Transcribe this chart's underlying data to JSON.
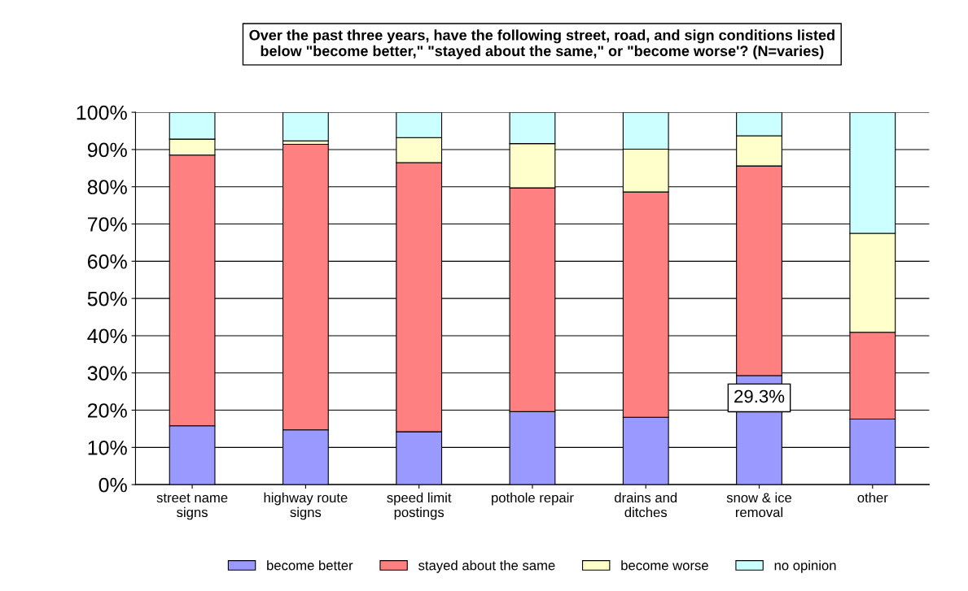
{
  "chart_data": {
    "type": "bar",
    "stacked": true,
    "title": "Over the past three years, have the following street, road, and sign conditions listed\nbelow \"become better,\" \"stayed about the same,\" or \"become worse'? (N=varies)",
    "categories": [
      "street name\nsigns",
      "highway route\nsigns",
      "speed limit\npostings",
      "pothole repair",
      "drains and\nditches",
      "snow & ice\nremoval",
      "other"
    ],
    "series": [
      {
        "name": "become better",
        "color": "#9999ff",
        "values": [
          15.8,
          14.7,
          14.2,
          19.6,
          18.1,
          29.3,
          17.6
        ],
        "value_labels": [
          null,
          null,
          null,
          null,
          null,
          "29.3%",
          null
        ]
      },
      {
        "name": "stayed about the same",
        "color": "#ff8080",
        "values": [
          72.7,
          76.7,
          72.3,
          60.1,
          60.5,
          56.3,
          23.3
        ]
      },
      {
        "name": "become worse",
        "color": "#ffffcc",
        "values": [
          4.3,
          0.9,
          6.7,
          11.9,
          11.5,
          8.1,
          26.6
        ]
      },
      {
        "name": "no opinion",
        "color": "#ccffff",
        "values": [
          7.2,
          7.7,
          6.8,
          8.4,
          9.9,
          6.3,
          32.5
        ]
      }
    ],
    "ylim": [
      0,
      100
    ],
    "yticks": [
      {
        "value": 0,
        "label": "0%"
      },
      {
        "value": 10,
        "label": "10%"
      },
      {
        "value": 20,
        "label": "20%"
      },
      {
        "value": 30,
        "label": "30%"
      },
      {
        "value": 40,
        "label": "40%"
      },
      {
        "value": 50,
        "label": "50%"
      },
      {
        "value": 60,
        "label": "60%"
      },
      {
        "value": 70,
        "label": "70%"
      },
      {
        "value": 80,
        "label": "80%"
      },
      {
        "value": 90,
        "label": "90%"
      },
      {
        "value": 100,
        "label": "100%"
      }
    ],
    "grid": "y",
    "legend": "bottom"
  }
}
